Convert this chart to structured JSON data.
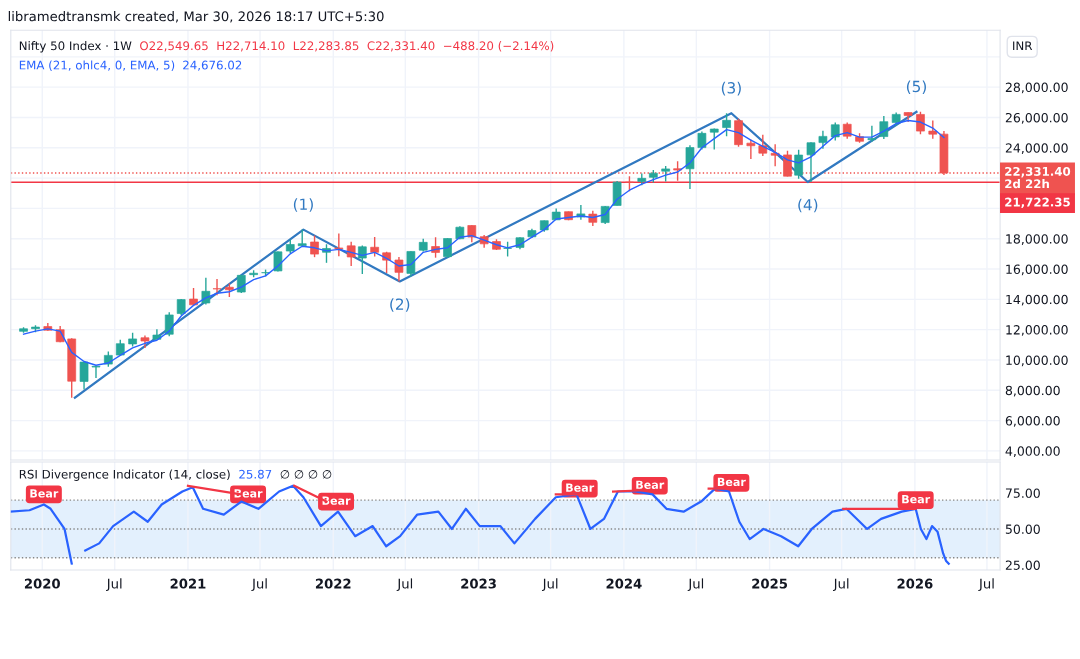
{
  "chart_data": [
    {
      "type": "candlestick",
      "title": "Nifty 50 Index · 1W",
      "ylabel": "INR",
      "annotations": [
        "libramedtransmk created, Mar 30, 2026 18:17 UTC+5:30",
        "O22,549.65  H22,714.10  L22,283.85  C22,331.40  −488.20 (−2.14%)",
        "24,676.02",
        "2d 22h",
        "(1)",
        "(2)",
        "(3)",
        "(4)",
        "(5)"
      ],
      "x": [
        "2019-11-15",
        "2019-12-15",
        "2020-01-15",
        "2020-02-15",
        "2020-03-15",
        "2020-04-15",
        "2020-05-15",
        "2020-06-15",
        "2020-07-15",
        "2020-08-15",
        "2020-09-15",
        "2020-10-15",
        "2020-11-15",
        "2020-12-15",
        "2021-01-15",
        "2021-02-15",
        "2021-03-15",
        "2021-04-15",
        "2021-05-15",
        "2021-06-15",
        "2021-07-15",
        "2021-08-15",
        "2021-09-15",
        "2021-10-15",
        "2021-11-15",
        "2021-12-15",
        "2022-01-15",
        "2022-02-15",
        "2022-03-15",
        "2022-04-15",
        "2022-05-15",
        "2022-06-15",
        "2022-07-15",
        "2022-08-15",
        "2022-09-15",
        "2022-10-15",
        "2022-11-15",
        "2022-12-15",
        "2023-01-15",
        "2023-02-15",
        "2023-03-15",
        "2023-04-15",
        "2023-05-15",
        "2023-06-15",
        "2023-07-15",
        "2023-08-15",
        "2023-09-15",
        "2023-10-15",
        "2023-11-15",
        "2023-12-15",
        "2024-01-15",
        "2024-02-15",
        "2024-03-15",
        "2024-04-15",
        "2024-05-15",
        "2024-06-15",
        "2024-07-15",
        "2024-08-15",
        "2024-09-15",
        "2024-10-15",
        "2024-11-15",
        "2024-12-15",
        "2025-01-15",
        "2025-02-15",
        "2025-03-15",
        "2025-04-15",
        "2025-05-15",
        "2025-06-15",
        "2025-07-15",
        "2025-08-15",
        "2025-09-15",
        "2025-10-15",
        "2025-11-15",
        "2025-12-15",
        "2026-01-15",
        "2026-02-15",
        "2026-03-15"
      ],
      "ohlc": [
        [
          11890,
          12158,
          11802,
          12056
        ],
        [
          12060,
          12294,
          11832,
          12168
        ],
        [
          12202,
          12430,
          11929,
          11962
        ],
        [
          12000,
          12246,
          11175,
          11202
        ],
        [
          11388,
          11433,
          7511,
          8598
        ],
        [
          8584,
          9889,
          8056,
          9860
        ],
        [
          9533,
          9598,
          8807,
          9580
        ],
        [
          9726,
          10554,
          9544,
          10302
        ],
        [
          10323,
          11341,
          10299,
          11073
        ],
        [
          11057,
          11794,
          10882,
          11388
        ],
        [
          11464,
          11618,
          10790,
          11248
        ],
        [
          11364,
          12025,
          11347,
          11642
        ],
        [
          11697,
          13146,
          11557,
          12969
        ],
        [
          13062,
          14024,
          12963,
          13982
        ],
        [
          14018,
          14754,
          13597,
          13635
        ],
        [
          13758,
          15432,
          13662,
          14529
        ],
        [
          14702,
          15336,
          14264,
          14691
        ],
        [
          14798,
          15045,
          14151,
          14631
        ],
        [
          14481,
          15606,
          14417,
          15583
        ],
        [
          15629,
          15915,
          15450,
          15722
        ],
        [
          15755,
          15963,
          15514,
          15763
        ],
        [
          15874,
          17154,
          15835,
          17132
        ],
        [
          17185,
          17948,
          17055,
          17618
        ],
        [
          17532,
          18604,
          17452,
          17672
        ],
        [
          17783,
          18210,
          16782,
          16983
        ],
        [
          17104,
          17640,
          16410,
          17354
        ],
        [
          17388,
          18351,
          16836,
          17340
        ],
        [
          17529,
          17794,
          16203,
          16794
        ],
        [
          16724,
          17560,
          15671,
          17465
        ],
        [
          17437,
          18115,
          16824,
          17103
        ],
        [
          17069,
          17132,
          15736,
          16585
        ],
        [
          16594,
          16794,
          15183,
          15780
        ],
        [
          15710,
          17172,
          15511,
          17158
        ],
        [
          17243,
          17992,
          17154,
          17759
        ],
        [
          17485,
          18096,
          16748,
          17094
        ],
        [
          16818,
          18023,
          16748,
          18012
        ],
        [
          17999,
          18816,
          17959,
          18758
        ],
        [
          18871,
          18887,
          17774,
          18105
        ],
        [
          18131,
          18252,
          17405,
          17662
        ],
        [
          17811,
          17972,
          17255,
          17304
        ],
        [
          17360,
          17799,
          16828,
          17360
        ],
        [
          17428,
          18089,
          17312,
          18065
        ],
        [
          18124,
          18662,
          18042,
          18534
        ],
        [
          18580,
          19201,
          18464,
          19189
        ],
        [
          19246,
          19991,
          19234,
          19754
        ],
        [
          19784,
          19796,
          19223,
          19254
        ],
        [
          19432,
          20222,
          19255,
          19638
        ],
        [
          19622,
          19849,
          18838,
          19080
        ],
        [
          19064,
          20158,
          18974,
          20133
        ],
        [
          20195,
          21802,
          20184,
          21731
        ],
        [
          21727,
          22124,
          21137,
          21726
        ],
        [
          21780,
          22298,
          21530,
          21983
        ],
        [
          22048,
          22527,
          21710,
          22327
        ],
        [
          22455,
          22795,
          21778,
          22605
        ],
        [
          22620,
          23111,
          21822,
          22531
        ],
        [
          22614,
          24174,
          21282,
          24011
        ],
        [
          24010,
          25079,
          23893,
          24951
        ],
        [
          25030,
          25268,
          23894,
          25236
        ],
        [
          25333,
          26277,
          24754,
          25811
        ],
        [
          25789,
          25907,
          24074,
          24205
        ],
        [
          24304,
          24538,
          23263,
          24131
        ],
        [
          24140,
          24858,
          23460,
          23645
        ],
        [
          23637,
          24226,
          22787,
          23508
        ],
        [
          23529,
          23807,
          22105,
          22125
        ],
        [
          22194,
          23869,
          21964,
          23519
        ],
        [
          23533,
          24365,
          21744,
          24334
        ],
        [
          24340,
          25116,
          23935,
          24751
        ],
        [
          24717,
          25669,
          24474,
          25517
        ],
        [
          25551,
          25669,
          24599,
          24768
        ],
        [
          24735,
          24956,
          24337,
          24427
        ],
        [
          24533,
          25448,
          24405,
          24611
        ],
        [
          24739,
          26104,
          24587,
          25722
        ],
        [
          25661,
          26325,
          25449,
          26203
        ],
        [
          26325,
          26326,
          25693,
          26130
        ],
        [
          26200,
          26373,
          24900,
          25100
        ],
        [
          25100,
          25800,
          24600,
          24900
        ],
        [
          24900,
          25100,
          22200,
          22331.4
        ]
      ],
      "colors": [
        "#26a69a",
        "#26a69a",
        "#ef5350",
        "#ef5350",
        "#ef5350",
        "#26a69a",
        "#26a69a",
        "#26a69a",
        "#26a69a",
        "#26a69a",
        "#ef5350",
        "#26a69a",
        "#26a69a",
        "#26a69a",
        "#ef5350",
        "#26a69a",
        "#ef5350",
        "#ef5350",
        "#26a69a",
        "#26a69a",
        "#26a69a",
        "#26a69a",
        "#26a69a",
        "#26a69a",
        "#ef5350",
        "#26a69a",
        "#ef5350",
        "#ef5350",
        "#26a69a",
        "#ef5350",
        "#ef5350",
        "#ef5350",
        "#26a69a",
        "#26a69a",
        "#ef5350",
        "#26a69a",
        "#26a69a",
        "#ef5350",
        "#ef5350",
        "#ef5350",
        "#26a69a",
        "#26a69a",
        "#26a69a",
        "#26a69a",
        "#26a69a",
        "#ef5350",
        "#26a69a",
        "#ef5350",
        "#26a69a",
        "#26a69a",
        "#ef5350",
        "#26a69a",
        "#26a69a",
        "#26a69a",
        "#ef5350",
        "#26a69a",
        "#26a69a",
        "#26a69a",
        "#26a69a",
        "#ef5350",
        "#ef5350",
        "#ef5350",
        "#ef5350",
        "#ef5350",
        "#26a69a",
        "#26a69a",
        "#26a69a",
        "#26a69a",
        "#ef5350",
        "#ef5350",
        "#26a69a",
        "#26a69a",
        "#26a69a",
        "#ef5350",
        "#ef5350",
        "#ef5350",
        "#ef5350"
      ],
      "series": [
        {
          "type": "line",
          "name": "EMA (21, ohlc4, 0, EMA, 5)",
          "color": "#2962ff",
          "x": [
            "2019-11-15",
            "2019-12-15",
            "2020-01-15",
            "2020-02-15",
            "2020-03-15",
            "2020-04-15",
            "2020-05-15",
            "2020-06-15",
            "2020-07-15",
            "2020-08-15",
            "2020-09-15",
            "2020-10-15",
            "2020-11-15",
            "2020-12-15",
            "2021-01-15",
            "2021-02-15",
            "2021-03-15",
            "2021-04-15",
            "2021-05-15",
            "2021-06-15",
            "2021-07-15",
            "2021-08-15",
            "2021-09-15",
            "2021-10-15",
            "2021-11-15",
            "2021-12-15",
            "2022-01-15",
            "2022-02-15",
            "2022-03-15",
            "2022-04-15",
            "2022-05-15",
            "2022-06-15",
            "2022-07-15",
            "2022-08-15",
            "2022-09-15",
            "2022-10-15",
            "2022-11-15",
            "2022-12-15",
            "2023-01-15",
            "2023-02-15",
            "2023-03-15",
            "2023-04-15",
            "2023-05-15",
            "2023-06-15",
            "2023-07-15",
            "2023-08-15",
            "2023-09-15",
            "2023-10-15",
            "2023-11-15",
            "2023-12-15",
            "2024-01-15",
            "2024-02-15",
            "2024-03-15",
            "2024-04-15",
            "2024-05-15",
            "2024-06-15",
            "2024-07-15",
            "2024-08-15",
            "2024-09-15",
            "2024-10-15",
            "2024-11-15",
            "2024-12-15",
            "2025-01-15",
            "2025-02-15",
            "2025-03-15",
            "2025-04-15",
            "2025-05-15",
            "2025-06-15",
            "2025-07-15",
            "2025-08-15",
            "2025-09-15",
            "2025-10-15",
            "2025-11-15",
            "2025-12-15",
            "2026-01-15",
            "2026-02-15",
            "2026-03-15"
          ],
          "values": [
            11700,
            11900,
            12050,
            11900,
            10500,
            9900,
            9650,
            9800,
            10300,
            10800,
            11100,
            11300,
            11900,
            12900,
            13600,
            14100,
            14400,
            14500,
            14800,
            15300,
            15550,
            16200,
            17000,
            17500,
            17400,
            17200,
            17300,
            17100,
            16900,
            17100,
            16700,
            16200,
            16300,
            17100,
            17300,
            17400,
            18100,
            18200,
            17900,
            17600,
            17400,
            17600,
            18100,
            18600,
            19300,
            19400,
            19500,
            19400,
            19600,
            20600,
            21200,
            21600,
            21900,
            22200,
            22400,
            23000,
            24000,
            24600,
            25200,
            25000,
            24500,
            24100,
            23700,
            23200,
            23000,
            23400,
            24100,
            24800,
            25000,
            24700,
            24700,
            25100,
            25600,
            25800,
            25700,
            25300,
            24680
          ]
        },
        {
          "type": "line",
          "color": "#3179c1",
          "x": [
            "2020-03-23",
            "2021-10-18",
            "2022-06-17",
            "2024-09-27",
            "2025-04-07",
            "2026-01-05"
          ],
          "values": [
            7510,
            18600,
            15180,
            26280,
            21740,
            26370
          ]
        }
      ],
      "ref_lines": [
        {
          "axis": "y",
          "value": 22331.4,
          "label": "22,331.40",
          "color": "#ef5350",
          "line_style": "dotted"
        },
        {
          "axis": "y",
          "value": 21722.35,
          "label": "21,722.35",
          "color": "#f23645",
          "line_style": "solid"
        }
      ],
      "xlim": [
        "2019-10-14",
        "2026-08-03"
      ],
      "ylim": [
        3400,
        31750
      ],
      "yticks": [
        {
          "value": 4000,
          "label": "4,000.00"
        },
        {
          "value": 6000,
          "label": "6,000.00"
        },
        {
          "value": 8000,
          "label": "8,000.00"
        },
        {
          "value": 10000,
          "label": "10,000.00"
        },
        {
          "value": 12000,
          "label": "12,000.00"
        },
        {
          "value": 14000,
          "label": "14,000.00"
        },
        {
          "value": 16000,
          "label": "16,000.00"
        },
        {
          "value": 18000,
          "label": "18,000.00"
        },
        {
          "value": 20000,
          "label": null
        },
        {
          "value": 22000,
          "label": null
        },
        {
          "value": 24000,
          "label": "24,000.00"
        },
        {
          "value": 26000,
          "label": "26,000.00"
        },
        {
          "value": 28000,
          "label": "28,000.00"
        },
        {
          "value": 30000,
          "label": null
        }
      ],
      "xticks": [
        {
          "value": "2020-01-01",
          "label": null
        },
        {
          "value": "2020-07-01",
          "label": null
        },
        {
          "value": "2021-01-01",
          "label": null
        },
        {
          "value": "2021-07-01",
          "label": null
        },
        {
          "value": "2022-01-01",
          "label": null
        },
        {
          "value": "2022-07-01",
          "label": null
        },
        {
          "value": "2023-01-01",
          "label": null
        },
        {
          "value": "2023-07-01",
          "label": null
        },
        {
          "value": "2024-01-01",
          "label": null
        },
        {
          "value": "2024-07-01",
          "label": null
        },
        {
          "value": "2025-01-01",
          "label": null
        },
        {
          "value": "2025-07-01",
          "label": null
        },
        {
          "value": "2026-01-01",
          "label": null
        },
        {
          "value": "2026-07-01",
          "label": null
        }
      ],
      "tick_labels": "y",
      "grid": true,
      "legend": false
    },
    {
      "type": "line",
      "title": "RSI Divergence Indicator (14, close)",
      "annotations": [
        "25.87",
        "∅ ∅ ∅ ∅",
        {
          "text": "Bear",
          "x": "2020-01-05",
          "y": 74
        },
        {
          "text": "Bear",
          "x": "2021-06-01",
          "y": 74
        },
        {
          "text": "Bear",
          "x": "2022-01-08",
          "y": 69
        },
        {
          "text": "Bear",
          "x": "2023-09-12",
          "y": 78
        },
        {
          "text": "Bear",
          "x": "2024-03-06",
          "y": 80
        },
        {
          "text": "Bear",
          "x": "2024-09-27",
          "y": 82
        },
        {
          "text": "Bear",
          "x": "2026-01-03",
          "y": 70
        }
      ],
      "series": [
        {
          "color": "#2962ff",
          "x": [
            "2019-10-14",
            "2019-11-30",
            "2020-01-05",
            "2020-01-22",
            "2020-02-26",
            "2020-03-15",
            "2020-04-01",
            "2020-04-18",
            "2020-05-23",
            "2020-06-27",
            "2020-08-18",
            "2020-09-22",
            "2020-10-27",
            "2020-12-18",
            "2021-01-13",
            "2021-02-08",
            "2021-04-01",
            "2021-05-15",
            "2021-06-27",
            "2021-08-18",
            "2021-09-22",
            "2021-10-18",
            "2021-12-01",
            "2022-01-13",
            "2022-02-25",
            "2022-04-10",
            "2022-05-14",
            "2022-06-18",
            "2022-07-31",
            "2022-09-22",
            "2022-10-26",
            "2022-11-30",
            "2023-01-04",
            "2023-02-25",
            "2023-04-01",
            "2023-05-23",
            "2023-07-14",
            "2023-09-04",
            "2023-10-09",
            "2023-11-12",
            "2023-12-17",
            "2024-01-30",
            "2024-03-13",
            "2024-04-17",
            "2024-05-30",
            "2024-07-13",
            "2024-08-17",
            "2024-09-21",
            "2024-10-17",
            "2024-11-12",
            "2024-12-17",
            "2025-01-30",
            "2025-03-14",
            "2025-04-17",
            "2025-06-08",
            "2025-07-13",
            "2025-09-03",
            "2025-10-08",
            "2025-11-29",
            "2026-01-03",
            "2026-01-16",
            "2026-01-30",
            "2026-02-13",
            "2026-02-27",
            "2026-03-13",
            "2026-03-20",
            "2026-03-27"
          ],
          "values": [
            62,
            63,
            67,
            64,
            50,
            26,
            null,
            35,
            40,
            52,
            62,
            55,
            67,
            76,
            79,
            64,
            60,
            69,
            64,
            76,
            80,
            72,
            52,
            62,
            45,
            52,
            38,
            45,
            60,
            62,
            50,
            64,
            52,
            52,
            40,
            57,
            72,
            74,
            50,
            57,
            76,
            76,
            74,
            64,
            62,
            69,
            78,
            76,
            55,
            43,
            50,
            45,
            38,
            50,
            62,
            64,
            50,
            57,
            62,
            64,
            50,
            43,
            52,
            48,
            33,
            28,
            25.9
          ]
        },
        {
          "color": "#f23645",
          "x": [
            "2021-01-01",
            "2021-05-15"
          ],
          "values": [
            80,
            74
          ]
        },
        {
          "color": "#f23645",
          "x": [
            "2021-09-25",
            "2021-12-15"
          ],
          "values": [
            80,
            69
          ]
        },
        {
          "color": "#f23645",
          "x": [
            "2023-07-14",
            "2023-09-25"
          ],
          "values": [
            74,
            74
          ]
        },
        {
          "color": "#f23645",
          "x": [
            "2023-12-05",
            "2024-03-01"
          ],
          "values": [
            76,
            77
          ]
        },
        {
          "color": "#f23645",
          "x": [
            "2024-08-01",
            "2024-10-15"
          ],
          "values": [
            78,
            78
          ]
        },
        {
          "color": "#f23645",
          "x": [
            "2025-07-05",
            "2026-01-03"
          ],
          "values": [
            64,
            64
          ]
        }
      ],
      "bands": [
        {
          "axis": "y",
          "from": 30,
          "to": 70,
          "color": "#e3f0fd"
        }
      ],
      "ref_lines": [
        {
          "axis": "y",
          "value": 70,
          "color": "#888888",
          "line_style": "dotted"
        },
        {
          "axis": "y",
          "value": 50,
          "color": "#888888",
          "line_style": "dotted"
        },
        {
          "axis": "y",
          "value": 30,
          "color": "#888888",
          "line_style": "dotted"
        }
      ],
      "xlim": [
        "2019-10-14",
        "2026-08-03"
      ],
      "ylim": [
        21.5,
        96.5
      ],
      "yticks": [
        {
          "value": 25,
          "label": "25.00"
        },
        {
          "value": 50,
          "label": "50.00"
        },
        {
          "value": 75,
          "label": "75.00"
        }
      ],
      "xticks": [
        {
          "value": "2020-01-01",
          "label": "2020"
        },
        {
          "value": "2020-07-01",
          "label": "Jul"
        },
        {
          "value": "2021-01-01",
          "label": "2021"
        },
        {
          "value": "2021-07-01",
          "label": "Jul"
        },
        {
          "value": "2022-01-01",
          "label": "2022"
        },
        {
          "value": "2022-07-01",
          "label": "Jul"
        },
        {
          "value": "2023-01-01",
          "label": "2023"
        },
        {
          "value": "2023-07-01",
          "label": "Jul"
        },
        {
          "value": "2024-01-01",
          "label": "2024"
        },
        {
          "value": "2024-07-01",
          "label": "Jul"
        },
        {
          "value": "2025-01-01",
          "label": "2025"
        },
        {
          "value": "2025-07-01",
          "label": "Jul"
        },
        {
          "value": "2026-01-01",
          "label": "2026"
        },
        {
          "value": "2026-07-01",
          "label": "Jul"
        }
      ],
      "grid": "x",
      "legend": false
    }
  ]
}
